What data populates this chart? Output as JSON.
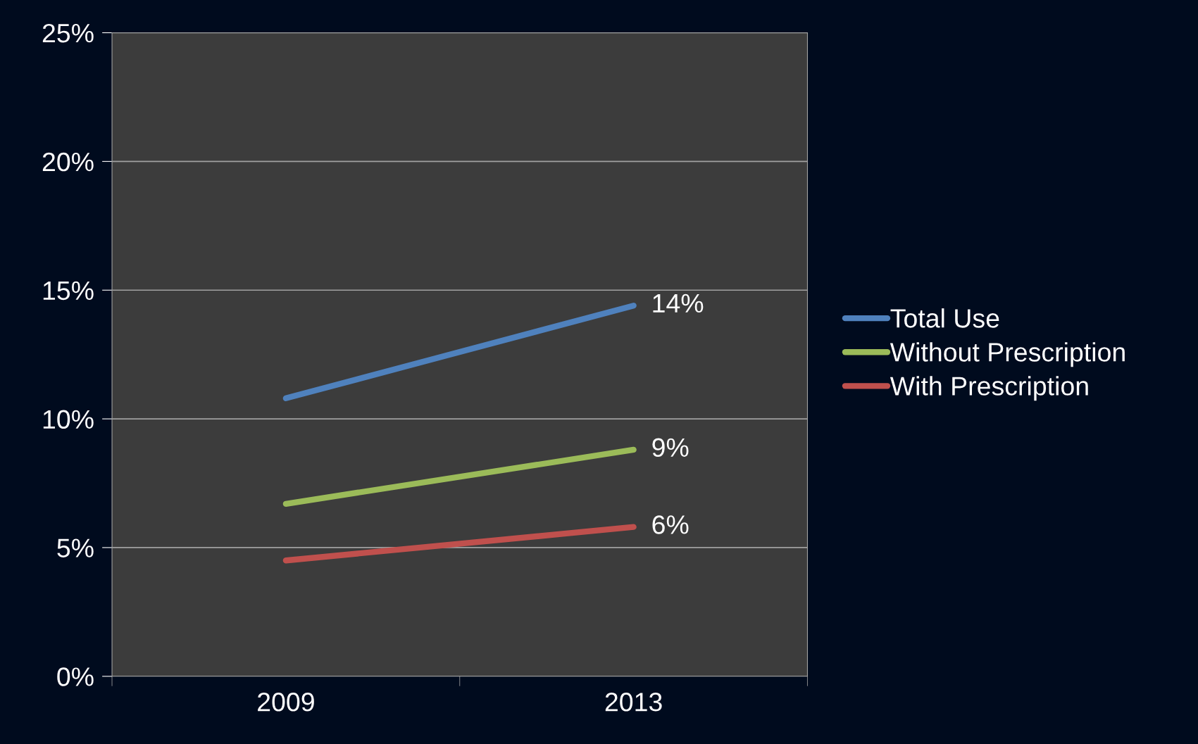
{
  "chart_data": {
    "type": "line",
    "categories": [
      "2009",
      "2013"
    ],
    "series": [
      {
        "name": "Total Use",
        "color": "#4f81bd",
        "values": [
          10.8,
          14.4
        ],
        "value_labels": [
          null,
          "14%"
        ]
      },
      {
        "name": "Without Prescription",
        "color": "#9bbb59",
        "values": [
          6.7,
          8.8
        ],
        "value_labels": [
          null,
          "9%"
        ]
      },
      {
        "name": "With Prescription",
        "color": "#c0504d",
        "values": [
          4.5,
          5.8
        ],
        "value_labels": [
          null,
          "6%"
        ]
      }
    ],
    "ylim": [
      0,
      25
    ],
    "yticks": [
      {
        "value": 0,
        "label": "0%"
      },
      {
        "value": 5,
        "label": "5%"
      },
      {
        "value": 10,
        "label": "10%"
      },
      {
        "value": 15,
        "label": "15%"
      },
      {
        "value": 20,
        "label": "20%"
      },
      {
        "value": 25,
        "label": "25%"
      }
    ],
    "grid": "y",
    "legend": "right",
    "marker": "none",
    "line_style": "solid"
  }
}
